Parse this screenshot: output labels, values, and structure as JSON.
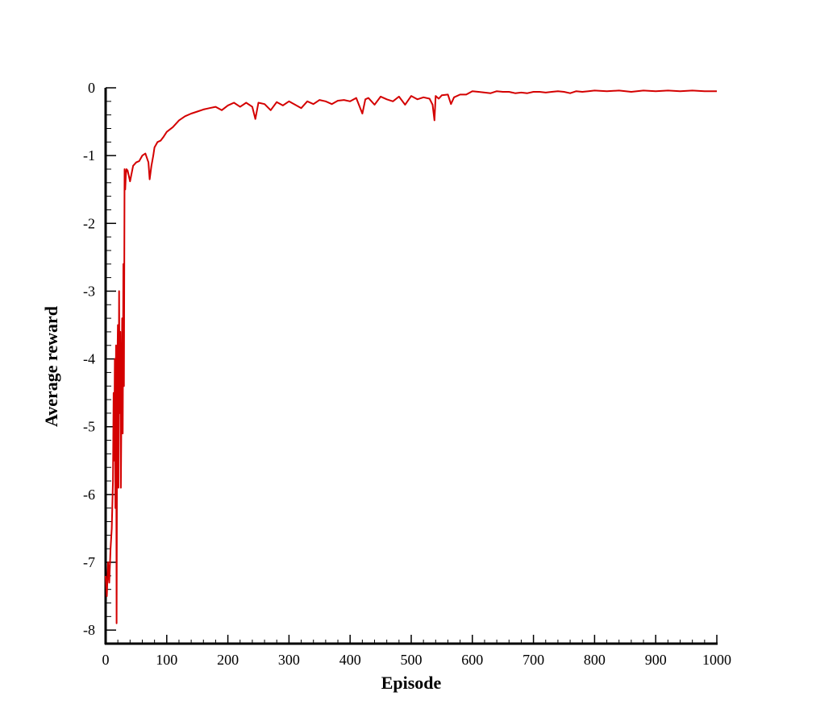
{
  "chart_data": {
    "type": "line",
    "xlabel": "Episode",
    "ylabel": "Average reward",
    "xlim": [
      0,
      1000
    ],
    "ylim": [
      -8.2,
      0
    ],
    "xticks": [
      0,
      100,
      200,
      300,
      400,
      500,
      600,
      700,
      800,
      900,
      1000
    ],
    "yticks": [
      0,
      -1,
      -2,
      -3,
      -4,
      -5,
      -6,
      -7,
      -8
    ],
    "x_minor_step": 20,
    "y_minor_step": 0.2,
    "grid": false,
    "legend": "none",
    "series": [
      {
        "color": "#d40000",
        "x": [
          0,
          2,
          4,
          6,
          8,
          10,
          12,
          13,
          14,
          15,
          16,
          17,
          18,
          19,
          20,
          21,
          22,
          23,
          24,
          25,
          26,
          27,
          28,
          29,
          30,
          31,
          32,
          33,
          34,
          36,
          40,
          45,
          50,
          55,
          60,
          65,
          70,
          72,
          75,
          78,
          80,
          85,
          90,
          95,
          100,
          110,
          120,
          130,
          140,
          150,
          160,
          170,
          180,
          190,
          200,
          210,
          220,
          230,
          240,
          245,
          250,
          260,
          270,
          280,
          290,
          300,
          310,
          320,
          330,
          340,
          350,
          360,
          370,
          380,
          390,
          400,
          410,
          420,
          425,
          430,
          440,
          450,
          460,
          470,
          480,
          490,
          500,
          510,
          520,
          530,
          535,
          538,
          540,
          545,
          550,
          560,
          565,
          570,
          580,
          590,
          600,
          610,
          620,
          630,
          640,
          650,
          660,
          670,
          680,
          690,
          700,
          710,
          720,
          730,
          740,
          750,
          760,
          770,
          780,
          790,
          800,
          820,
          840,
          860,
          880,
          900,
          920,
          940,
          960,
          980,
          1000
        ],
        "values": [
          -7.2,
          -7.5,
          -7.0,
          -7.3,
          -6.8,
          -6.5,
          -5.8,
          -4.5,
          -5.5,
          -4.0,
          -6.2,
          -3.8,
          -7.9,
          -4.2,
          -3.5,
          -5.9,
          -3.0,
          -4.8,
          -3.6,
          -5.9,
          -4.6,
          -3.4,
          -5.1,
          -2.6,
          -4.4,
          -1.2,
          -1.5,
          -1.3,
          -1.2,
          -1.22,
          -1.38,
          -1.15,
          -1.1,
          -1.08,
          -1.0,
          -0.97,
          -1.1,
          -1.35,
          -1.15,
          -1.0,
          -0.88,
          -0.8,
          -0.78,
          -0.72,
          -0.65,
          -0.58,
          -0.48,
          -0.42,
          -0.38,
          -0.35,
          -0.32,
          -0.3,
          -0.28,
          -0.33,
          -0.26,
          -0.22,
          -0.28,
          -0.22,
          -0.28,
          -0.46,
          -0.22,
          -0.24,
          -0.33,
          -0.21,
          -0.26,
          -0.2,
          -0.25,
          -0.3,
          -0.2,
          -0.24,
          -0.18,
          -0.2,
          -0.24,
          -0.19,
          -0.18,
          -0.2,
          -0.15,
          -0.38,
          -0.17,
          -0.15,
          -0.25,
          -0.13,
          -0.17,
          -0.2,
          -0.13,
          -0.25,
          -0.12,
          -0.17,
          -0.14,
          -0.16,
          -0.25,
          -0.48,
          -0.12,
          -0.16,
          -0.11,
          -0.1,
          -0.24,
          -0.14,
          -0.1,
          -0.1,
          -0.05,
          -0.06,
          -0.07,
          -0.08,
          -0.05,
          -0.06,
          -0.06,
          -0.08,
          -0.07,
          -0.08,
          -0.06,
          -0.06,
          -0.07,
          -0.06,
          -0.05,
          -0.06,
          -0.08,
          -0.05,
          -0.06,
          -0.05,
          -0.04,
          -0.05,
          -0.04,
          -0.06,
          -0.04,
          -0.05,
          -0.04,
          -0.05,
          -0.04,
          -0.05,
          -0.05
        ]
      }
    ]
  }
}
